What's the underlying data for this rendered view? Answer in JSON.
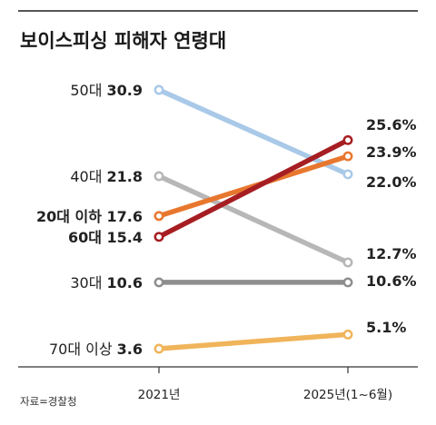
{
  "chart_data": {
    "type": "line",
    "title": "보이스피싱 피해자 연령대",
    "x": [
      "2021년",
      "2025년(1~6월)"
    ],
    "ylabel": "",
    "xlabel": "",
    "series": [
      {
        "name": "50대",
        "display_label": "50대",
        "values": [
          30.9,
          22.0
        ],
        "value_labels": [
          "30.9",
          "22.0%"
        ],
        "color": "#a9c9e8",
        "label_bold": false
      },
      {
        "name": "40대",
        "display_label": "40대",
        "values": [
          21.8,
          12.7
        ],
        "value_labels": [
          "21.8",
          "12.7%"
        ],
        "color": "#b7b7b7",
        "label_bold": false
      },
      {
        "name": "20대 이하",
        "display_label": "20대 이하",
        "values": [
          17.6,
          23.9
        ],
        "value_labels": [
          "17.6",
          "23.9%"
        ],
        "color": "#e8772e",
        "label_bold": true
      },
      {
        "name": "60대",
        "display_label": "60대",
        "values": [
          15.4,
          25.6
        ],
        "value_labels": [
          "15.4",
          "25.6%"
        ],
        "color": "#a61e22",
        "label_bold": true
      },
      {
        "name": "30대",
        "display_label": "30대",
        "values": [
          10.6,
          10.6
        ],
        "value_labels": [
          "10.6",
          "10.6%"
        ],
        "color": "#8e8e8e",
        "label_bold": false
      },
      {
        "name": "70대 이상",
        "display_label": "70대 이상",
        "values": [
          3.6,
          5.1
        ],
        "value_labels": [
          "3.6",
          "5.1%"
        ],
        "color": "#f0b45a",
        "label_bold": false
      }
    ]
  },
  "source": "자료=경찰청"
}
